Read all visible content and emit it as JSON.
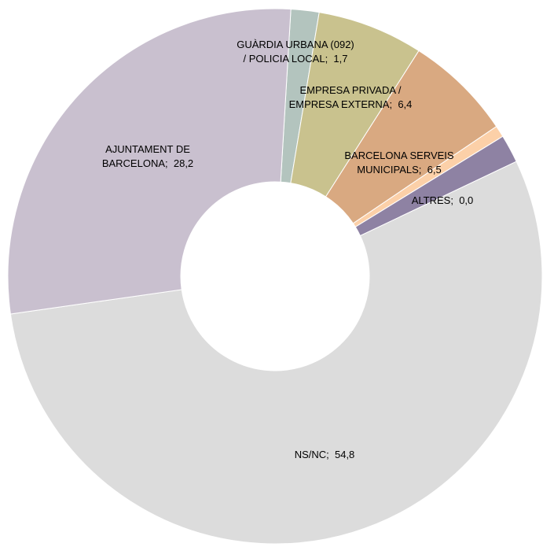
{
  "chart_data": {
    "type": "donut",
    "categories": [
      "GUÀRDIA URBANA (092) / POLICIA LOCAL",
      "EMPRESA PRIVADA / EMPRESA EXTERNA",
      "BARCELONA SERVEIS MUNICIPALS",
      null,
      "ALTRES",
      null,
      "NS/NC",
      "AJUNTAMENT DE BARCELONA"
    ],
    "values": [
      1.7,
      6.4,
      6.5,
      0.7,
      0.0,
      1.7,
      54.8,
      28.2
    ],
    "value_labels": [
      "1,7",
      "6,4",
      "6,5",
      null,
      "0,0",
      null,
      "54,8",
      "28,2"
    ],
    "colors": [
      "#b3c4be",
      "#c9c28e",
      "#d9a981",
      "#fcd0a8",
      "#8e82a3",
      "#8e82a3",
      "#dcdcdc",
      "#c9c0cf"
    ]
  }
}
